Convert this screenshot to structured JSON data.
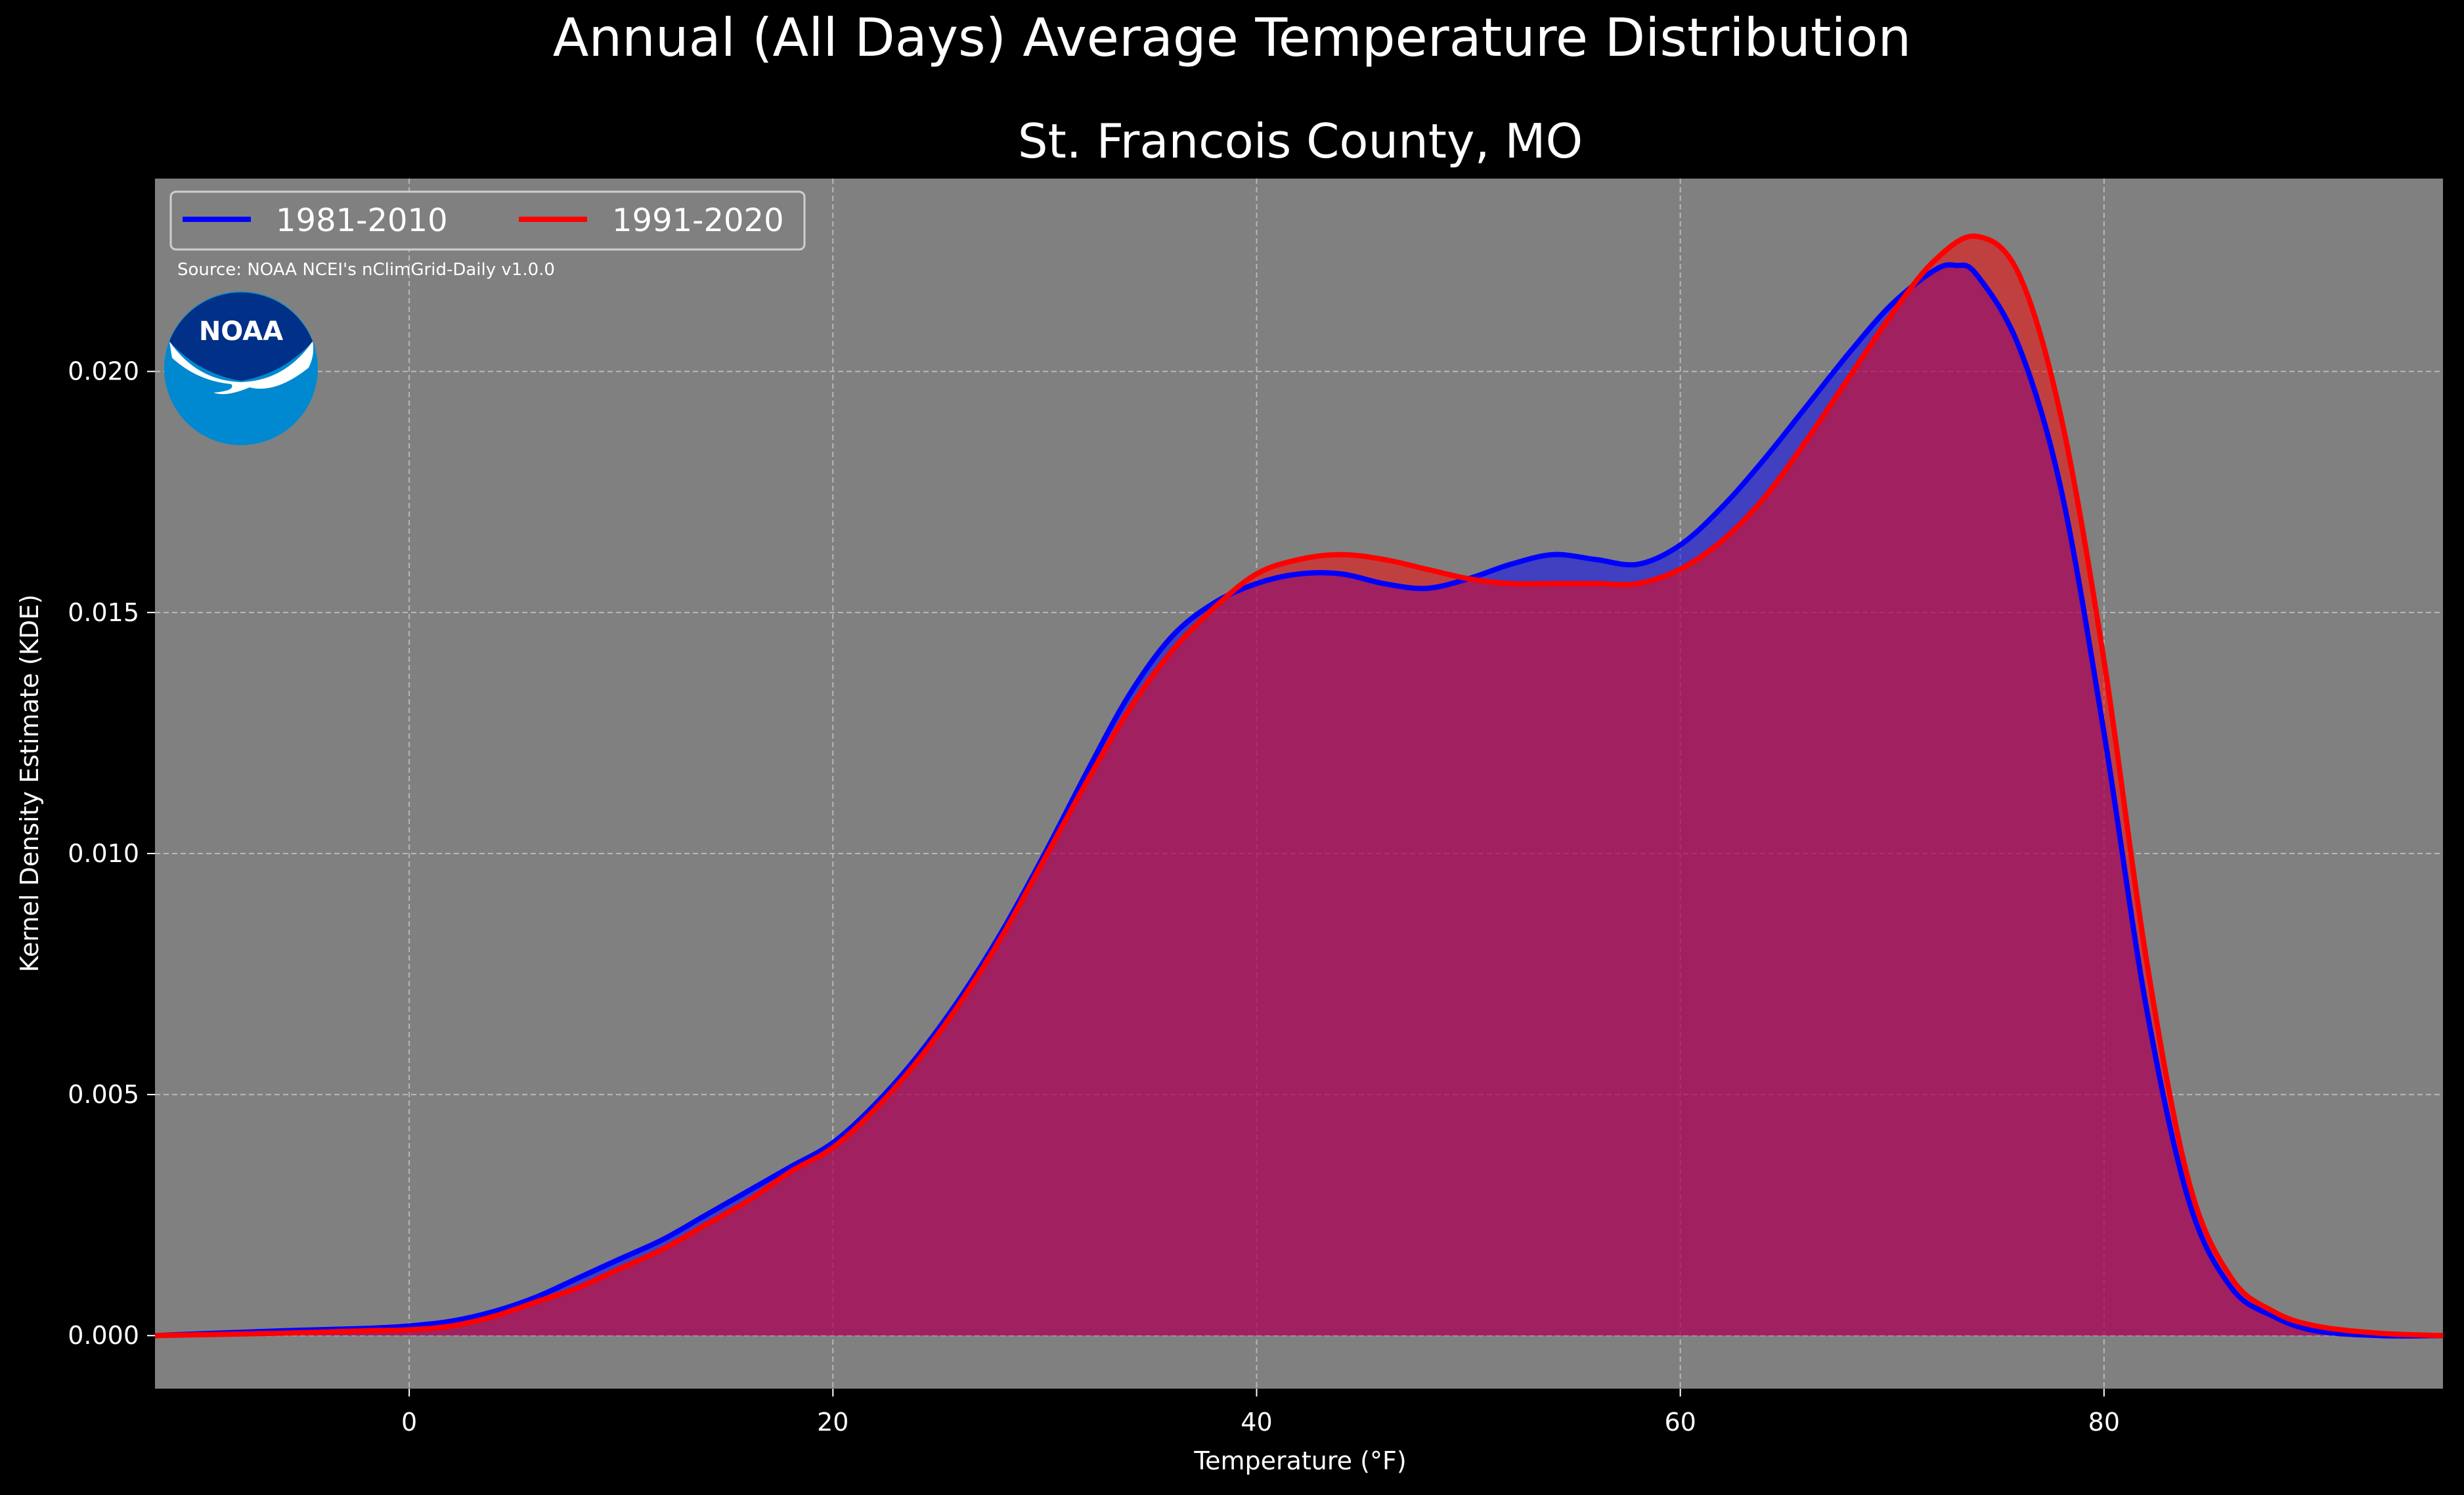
{
  "suptitle": "Annual (All Days) Average Temperature Distribution",
  "chart_data": {
    "type": "area",
    "title": "St. Francois County, MO",
    "xlabel": "Temperature ($^\\circ$F)",
    "xlabel_display": "Temperature (°F)",
    "ylabel": "Kernel Density Estimate (KDE)",
    "xlim": [
      -12,
      96
    ],
    "ylim": [
      -0.0011,
      0.024
    ],
    "xticks": [
      0,
      20,
      40,
      60,
      80
    ],
    "yticks": [
      0.0,
      0.005,
      0.01,
      0.015,
      0.02
    ],
    "ytick_labels": [
      "0.000",
      "0.005",
      "0.010",
      "0.015",
      "0.020"
    ],
    "grid": true,
    "legend_position": "top-left",
    "source_note": "Source: NOAA NCEI's nClimGrid-Daily v1.0.0",
    "logo_text": "NOAA",
    "series": [
      {
        "name": "1981-2010",
        "color": "#0000ff",
        "x": [
          -12,
          -6,
          -2,
          0,
          2,
          4,
          6,
          8,
          10,
          12,
          14,
          16,
          18,
          20,
          22,
          24,
          26,
          28,
          30,
          32,
          34,
          36,
          38,
          40,
          42,
          44,
          46,
          48,
          50,
          52,
          54,
          56,
          58,
          60,
          62,
          64,
          66,
          68,
          70,
          72,
          73,
          74,
          76,
          78,
          80,
          82,
          84,
          86,
          88,
          90,
          93,
          96
        ],
        "y": [
          0.0,
          0.0001,
          0.00015,
          0.0002,
          0.0003,
          0.0005,
          0.0008,
          0.0012,
          0.0016,
          0.002,
          0.0025,
          0.003,
          0.0035,
          0.004,
          0.0048,
          0.0058,
          0.007,
          0.0084,
          0.01,
          0.0117,
          0.0133,
          0.0145,
          0.0152,
          0.0156,
          0.0158,
          0.0158,
          0.0156,
          0.0155,
          0.0157,
          0.016,
          0.0162,
          0.0161,
          0.016,
          0.0164,
          0.0172,
          0.0182,
          0.0193,
          0.0204,
          0.0214,
          0.0221,
          0.0222,
          0.022,
          0.0205,
          0.0175,
          0.0125,
          0.0068,
          0.0028,
          0.001,
          0.0004,
          0.0001,
          0.0,
          0.0
        ]
      },
      {
        "name": "1991-2020",
        "color": "#ff0000",
        "x": [
          -12,
          -6,
          -2,
          0,
          2,
          4,
          6,
          8,
          10,
          12,
          14,
          16,
          18,
          20,
          22,
          24,
          26,
          28,
          30,
          32,
          34,
          36,
          38,
          40,
          42,
          44,
          46,
          48,
          50,
          52,
          54,
          56,
          58,
          60,
          62,
          64,
          66,
          68,
          70,
          72,
          74,
          76,
          78,
          80,
          82,
          84,
          86,
          88,
          90,
          93,
          96
        ],
        "y": [
          0.0,
          5e-05,
          0.0001,
          0.00012,
          0.0002,
          0.0004,
          0.0007,
          0.001,
          0.0014,
          0.0018,
          0.0023,
          0.0028,
          0.0034,
          0.0039,
          0.0047,
          0.0057,
          0.0069,
          0.0083,
          0.0099,
          0.0115,
          0.013,
          0.0142,
          0.0151,
          0.0158,
          0.0161,
          0.0162,
          0.0161,
          0.0159,
          0.0157,
          0.0156,
          0.0156,
          0.0156,
          0.0156,
          0.0159,
          0.0165,
          0.0174,
          0.0186,
          0.0199,
          0.0212,
          0.0223,
          0.0228,
          0.022,
          0.019,
          0.014,
          0.0078,
          0.0032,
          0.0012,
          0.0005,
          0.0002,
          5e-05,
          0.0
        ]
      }
    ]
  }
}
